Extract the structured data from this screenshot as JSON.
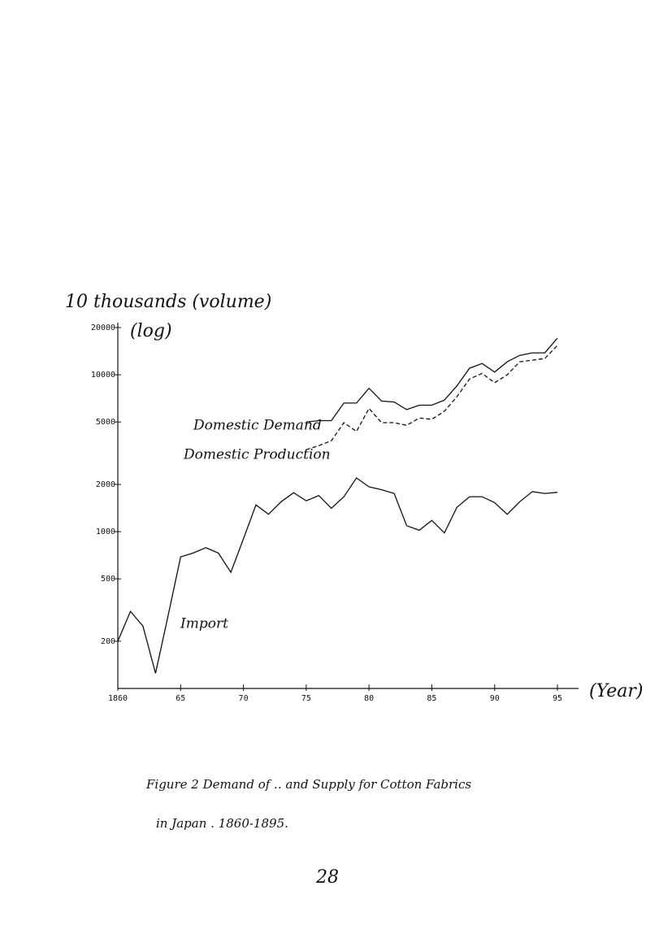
{
  "chart_data": {
    "type": "line",
    "y_label": "10 thousands (volume)",
    "y_label_note": "(log)",
    "x_label": "(Year)",
    "log_y": true,
    "xlim": [
      1860,
      1895
    ],
    "xticks": [
      1860,
      {
        "value": 1865,
        "label": "65"
      },
      {
        "value": 1870,
        "label": "70"
      },
      {
        "value": 1875,
        "label": "75"
      },
      {
        "value": 1880,
        "label": "80"
      },
      {
        "value": 1885,
        "label": "85"
      },
      {
        "value": 1890,
        "label": "90"
      },
      {
        "value": 1895,
        "label": "95"
      }
    ],
    "ylim": [
      100,
      20000
    ],
    "yticks": [
      200,
      500,
      1000,
      2000,
      5000,
      10000,
      20000
    ],
    "x": [
      1860,
      1861,
      1862,
      1863,
      1864,
      1865,
      1866,
      1867,
      1868,
      1869,
      1870,
      1871,
      1872,
      1873,
      1874,
      1875,
      1876,
      1877,
      1878,
      1879,
      1880,
      1881,
      1882,
      1883,
      1884,
      1885,
      1886,
      1887,
      1888,
      1889,
      1890,
      1891,
      1892,
      1893,
      1894,
      1895
    ],
    "series": [
      {
        "name": "Domestic Demand",
        "color": "#111111",
        "style": "solid",
        "values": [
          null,
          null,
          null,
          null,
          null,
          null,
          null,
          null,
          null,
          null,
          null,
          null,
          null,
          null,
          null,
          5000,
          5100,
          5100,
          6600,
          6600,
          8200,
          6800,
          6700,
          6000,
          6400,
          6400,
          6900,
          8500,
          11000,
          11800,
          10400,
          12100,
          13300,
          13800,
          13800,
          17100
        ]
      },
      {
        "name": "Domestic Production",
        "color": "#111111",
        "style": "dashed",
        "values": [
          null,
          null,
          null,
          null,
          null,
          null,
          null,
          null,
          null,
          null,
          null,
          null,
          null,
          null,
          null,
          3330,
          3530,
          3800,
          4950,
          4350,
          6100,
          4950,
          4950,
          4760,
          5300,
          5200,
          5850,
          7250,
          9400,
          10200,
          8900,
          10000,
          12100,
          12400,
          12700,
          15400
        ]
      },
      {
        "name": "Import",
        "color": "#111111",
        "style": "solid",
        "values": [
          200,
          310,
          250,
          125,
          290,
          690,
          730,
          790,
          730,
          550,
          900,
          1480,
          1290,
          1550,
          1770,
          1570,
          1700,
          1410,
          1670,
          2200,
          1930,
          1850,
          1750,
          1090,
          1020,
          1180,
          980,
          1430,
          1670,
          1670,
          1530,
          1290,
          1550,
          1800,
          1750,
          1780
        ]
      }
    ]
  },
  "caption": [
    "Figure 2   Demand of .. and Supply for  Cotton Fabrics",
    "in Japan . 1860-1895."
  ],
  "page_number": "28"
}
